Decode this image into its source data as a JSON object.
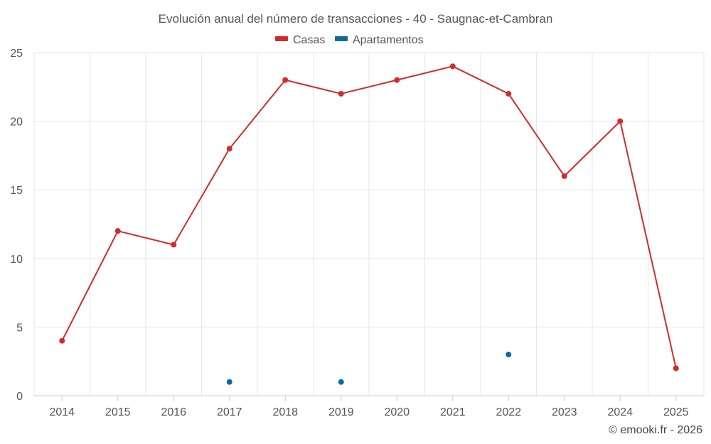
{
  "chart_data": {
    "type": "line",
    "title": "Evolución anual del número de transacciones - 40 - Saugnac-et-Cambran",
    "x": [
      "2014",
      "2015",
      "2016",
      "2017",
      "2018",
      "2019",
      "2020",
      "2021",
      "2022",
      "2023",
      "2024",
      "2025"
    ],
    "series": [
      {
        "name": "Casas",
        "color": "#d42a2a",
        "values": [
          4,
          12,
          11,
          18,
          23,
          22,
          23,
          24,
          22,
          16,
          20,
          2
        ]
      },
      {
        "name": "Apartamentos",
        "color": "#0a6aa1",
        "values": [
          null,
          null,
          null,
          1,
          null,
          1,
          null,
          null,
          3,
          null,
          null,
          null
        ]
      }
    ],
    "ylim": [
      0,
      25
    ],
    "yticks": [
      "0",
      "5",
      "10",
      "15",
      "20",
      "25"
    ],
    "xlabel": "",
    "ylabel": "",
    "grid": true,
    "legend": "top-center"
  },
  "credit": "© emooki.fr - 2026"
}
